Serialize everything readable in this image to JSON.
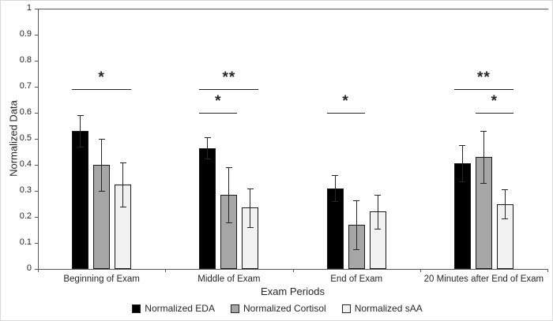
{
  "chart_data": {
    "type": "bar",
    "title": "",
    "xlabel": "Exam Periods",
    "ylabel": "Normalized Data",
    "ylim": [
      0,
      1
    ],
    "ytick_step": 0.1,
    "yticks": [
      "0",
      "0.1",
      "0.2",
      "0.3",
      "0.4",
      "0.5",
      "0.6",
      "0.7",
      "0.8",
      "0.9",
      "1"
    ],
    "grid": false,
    "legend_position": "bottom",
    "categories": [
      "Beginning of Exam",
      "Middle of Exam",
      "End of Exam",
      "20 Minutes after End of Exam"
    ],
    "series": [
      {
        "name": "Normalized EDA",
        "color": "#000000",
        "values": [
          0.53,
          0.465,
          0.31,
          0.405
        ],
        "errors": [
          0.06,
          0.04,
          0.05,
          0.07
        ]
      },
      {
        "name": "Normalized Cortisol",
        "color": "#a6a6a6",
        "values": [
          0.4,
          0.285,
          0.17,
          0.43
        ],
        "errors": [
          0.1,
          0.105,
          0.095,
          0.1
        ]
      },
      {
        "name": "Normalized sAA",
        "color": "#f2f2f2",
        "values": [
          0.325,
          0.235,
          0.22,
          0.25
        ],
        "errors": [
          0.085,
          0.075,
          0.065,
          0.055
        ]
      }
    ],
    "significance": [
      {
        "group": 0,
        "from": 0,
        "to": 2,
        "y": 0.69,
        "label": "*"
      },
      {
        "group": 1,
        "from": 0,
        "to": 2,
        "y": 0.69,
        "label": "**"
      },
      {
        "group": 1,
        "from": 0,
        "to": 1,
        "y": 0.6,
        "label": "*"
      },
      {
        "group": 2,
        "from": 0,
        "to": 1,
        "y": 0.6,
        "label": "*"
      },
      {
        "group": 3,
        "from": 0,
        "to": 2,
        "y": 0.69,
        "label": "**"
      },
      {
        "group": 3,
        "from": 1,
        "to": 2,
        "y": 0.6,
        "label": "*"
      }
    ]
  }
}
